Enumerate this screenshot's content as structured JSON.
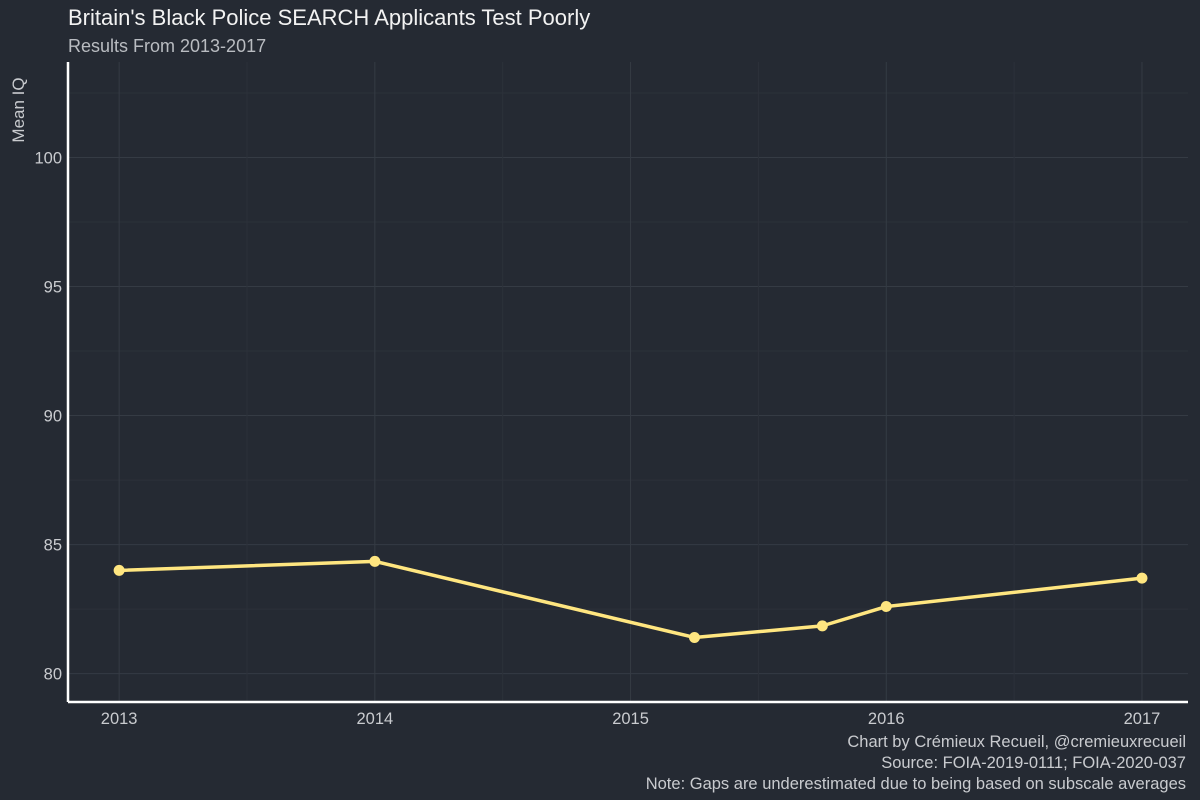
{
  "chart_data": {
    "type": "line",
    "title": "Britain's Black Police SEARCH Applicants Test Poorly",
    "subtitle": "Results From 2013-2017",
    "xlabel": "",
    "ylabel": "Mean IQ",
    "x": [
      2013,
      2014,
      2015.25,
      2015.75,
      2016,
      2017
    ],
    "y": [
      84.0,
      84.35,
      81.4,
      81.85,
      82.6,
      83.7
    ],
    "xlim": [
      2012.8,
      2017.18
    ],
    "ylim": [
      78.9,
      103.7
    ],
    "xticks": [
      "2013",
      "2014",
      "2015",
      "2016",
      "2017"
    ],
    "yticks": [
      "80",
      "85",
      "90",
      "95",
      "100"
    ],
    "grid": true,
    "line_color": "#ffe680",
    "captions": [
      "Chart by Crémieux Recueil, @cremieuxrecueil",
      "Source: FOIA-2019-0111; FOIA-2020-037",
      "Note: Gaps are underestimated due to being based on subscale averages"
    ]
  }
}
